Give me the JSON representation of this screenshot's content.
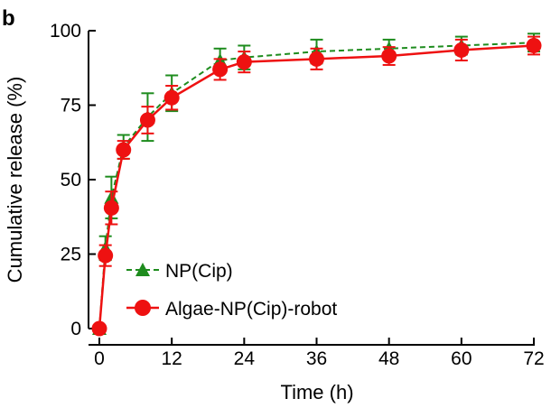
{
  "panel_label": "b",
  "colors": {
    "np": "#1e8c1e",
    "robot": "#ee1111",
    "axis": "#000000"
  },
  "chart_data": {
    "type": "line",
    "xlabel": "Time (h)",
    "ylabel": "Cumulative release (%)",
    "xlim": [
      0,
      72
    ],
    "ylim": [
      0,
      100
    ],
    "xticks": [
      0,
      12,
      24,
      36,
      48,
      60,
      72
    ],
    "yticks": [
      0,
      25,
      50,
      75,
      100
    ],
    "grid": false,
    "legend_position": "bottom-left",
    "series": [
      {
        "name": "NP(Cip)",
        "marker": "triangle",
        "line": "dashed",
        "x": [
          0,
          1,
          2,
          4,
          8,
          12,
          20,
          24,
          36,
          48,
          60,
          72
        ],
        "y": [
          0,
          27,
          44,
          61,
          71,
          79,
          90,
          91,
          93,
          94,
          95,
          96
        ],
        "err": [
          0,
          4,
          7,
          4,
          8,
          6,
          4,
          4,
          4,
          3,
          3,
          3
        ]
      },
      {
        "name": "Algae-NP(Cip)-robot",
        "marker": "circle",
        "line": "solid",
        "x": [
          0,
          1,
          2,
          4,
          8,
          12,
          20,
          24,
          36,
          48,
          60,
          72
        ],
        "y": [
          0,
          24.5,
          40.5,
          60,
          70,
          77.5,
          87,
          89.5,
          90.5,
          91.5,
          93.5,
          95
        ],
        "err": [
          0,
          3.5,
          5.5,
          3,
          4.5,
          4,
          3.5,
          3.5,
          3.5,
          3,
          3.5,
          3
        ]
      }
    ]
  }
}
